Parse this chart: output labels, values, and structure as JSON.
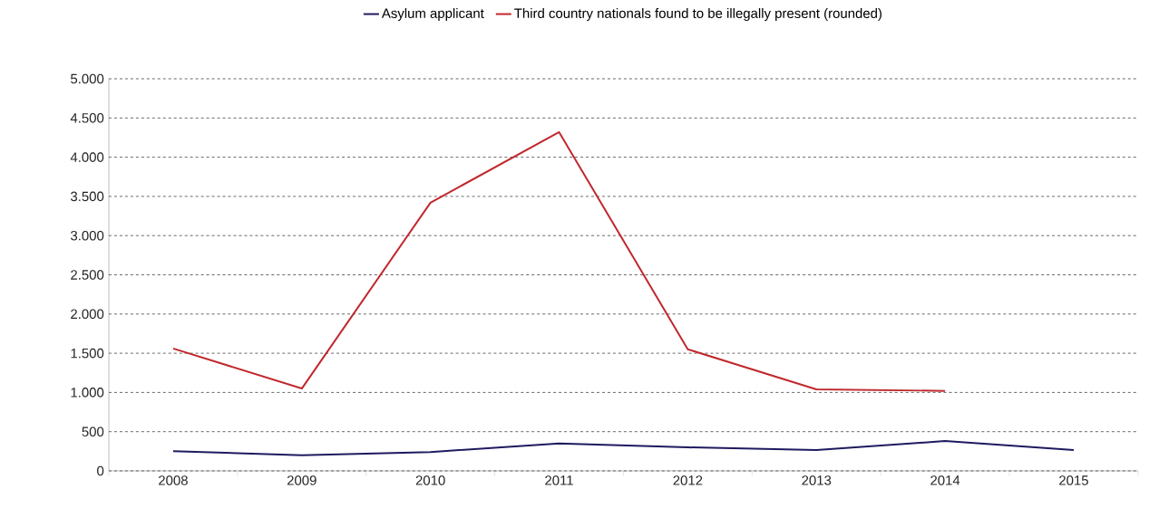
{
  "chart_data": {
    "type": "line",
    "categories": [
      "2008",
      "2009",
      "2010",
      "2011",
      "2012",
      "2013",
      "2014",
      "2015"
    ],
    "series": [
      {
        "name": "Asylum applicant",
        "color": "#1f1a5e",
        "values": [
          250,
          200,
          240,
          350,
          300,
          265,
          380,
          265
        ]
      },
      {
        "name": "Third country nationals found to be illegally present (rounded)",
        "color": "#c0282d",
        "values": [
          1560,
          1050,
          3420,
          4320,
          1550,
          1040,
          1020,
          null
        ]
      }
    ],
    "ylim": [
      0,
      5000
    ],
    "yticks": [
      0,
      500,
      {
        "value": 1000,
        "label": "1.000"
      },
      {
        "value": 1500,
        "label": "1.500"
      },
      {
        "value": 2000,
        "label": "2.000"
      },
      {
        "value": 2500,
        "label": "2.500"
      },
      {
        "value": 3000,
        "label": "3.000"
      },
      {
        "value": 3500,
        "label": "3.500"
      },
      {
        "value": 4000,
        "label": "4.000"
      },
      {
        "value": 4500,
        "label": "4.500"
      },
      {
        "value": 5000,
        "label": "5.000"
      }
    ],
    "grid": "y",
    "legend": "top",
    "marker": "none",
    "line_style": "solid"
  }
}
